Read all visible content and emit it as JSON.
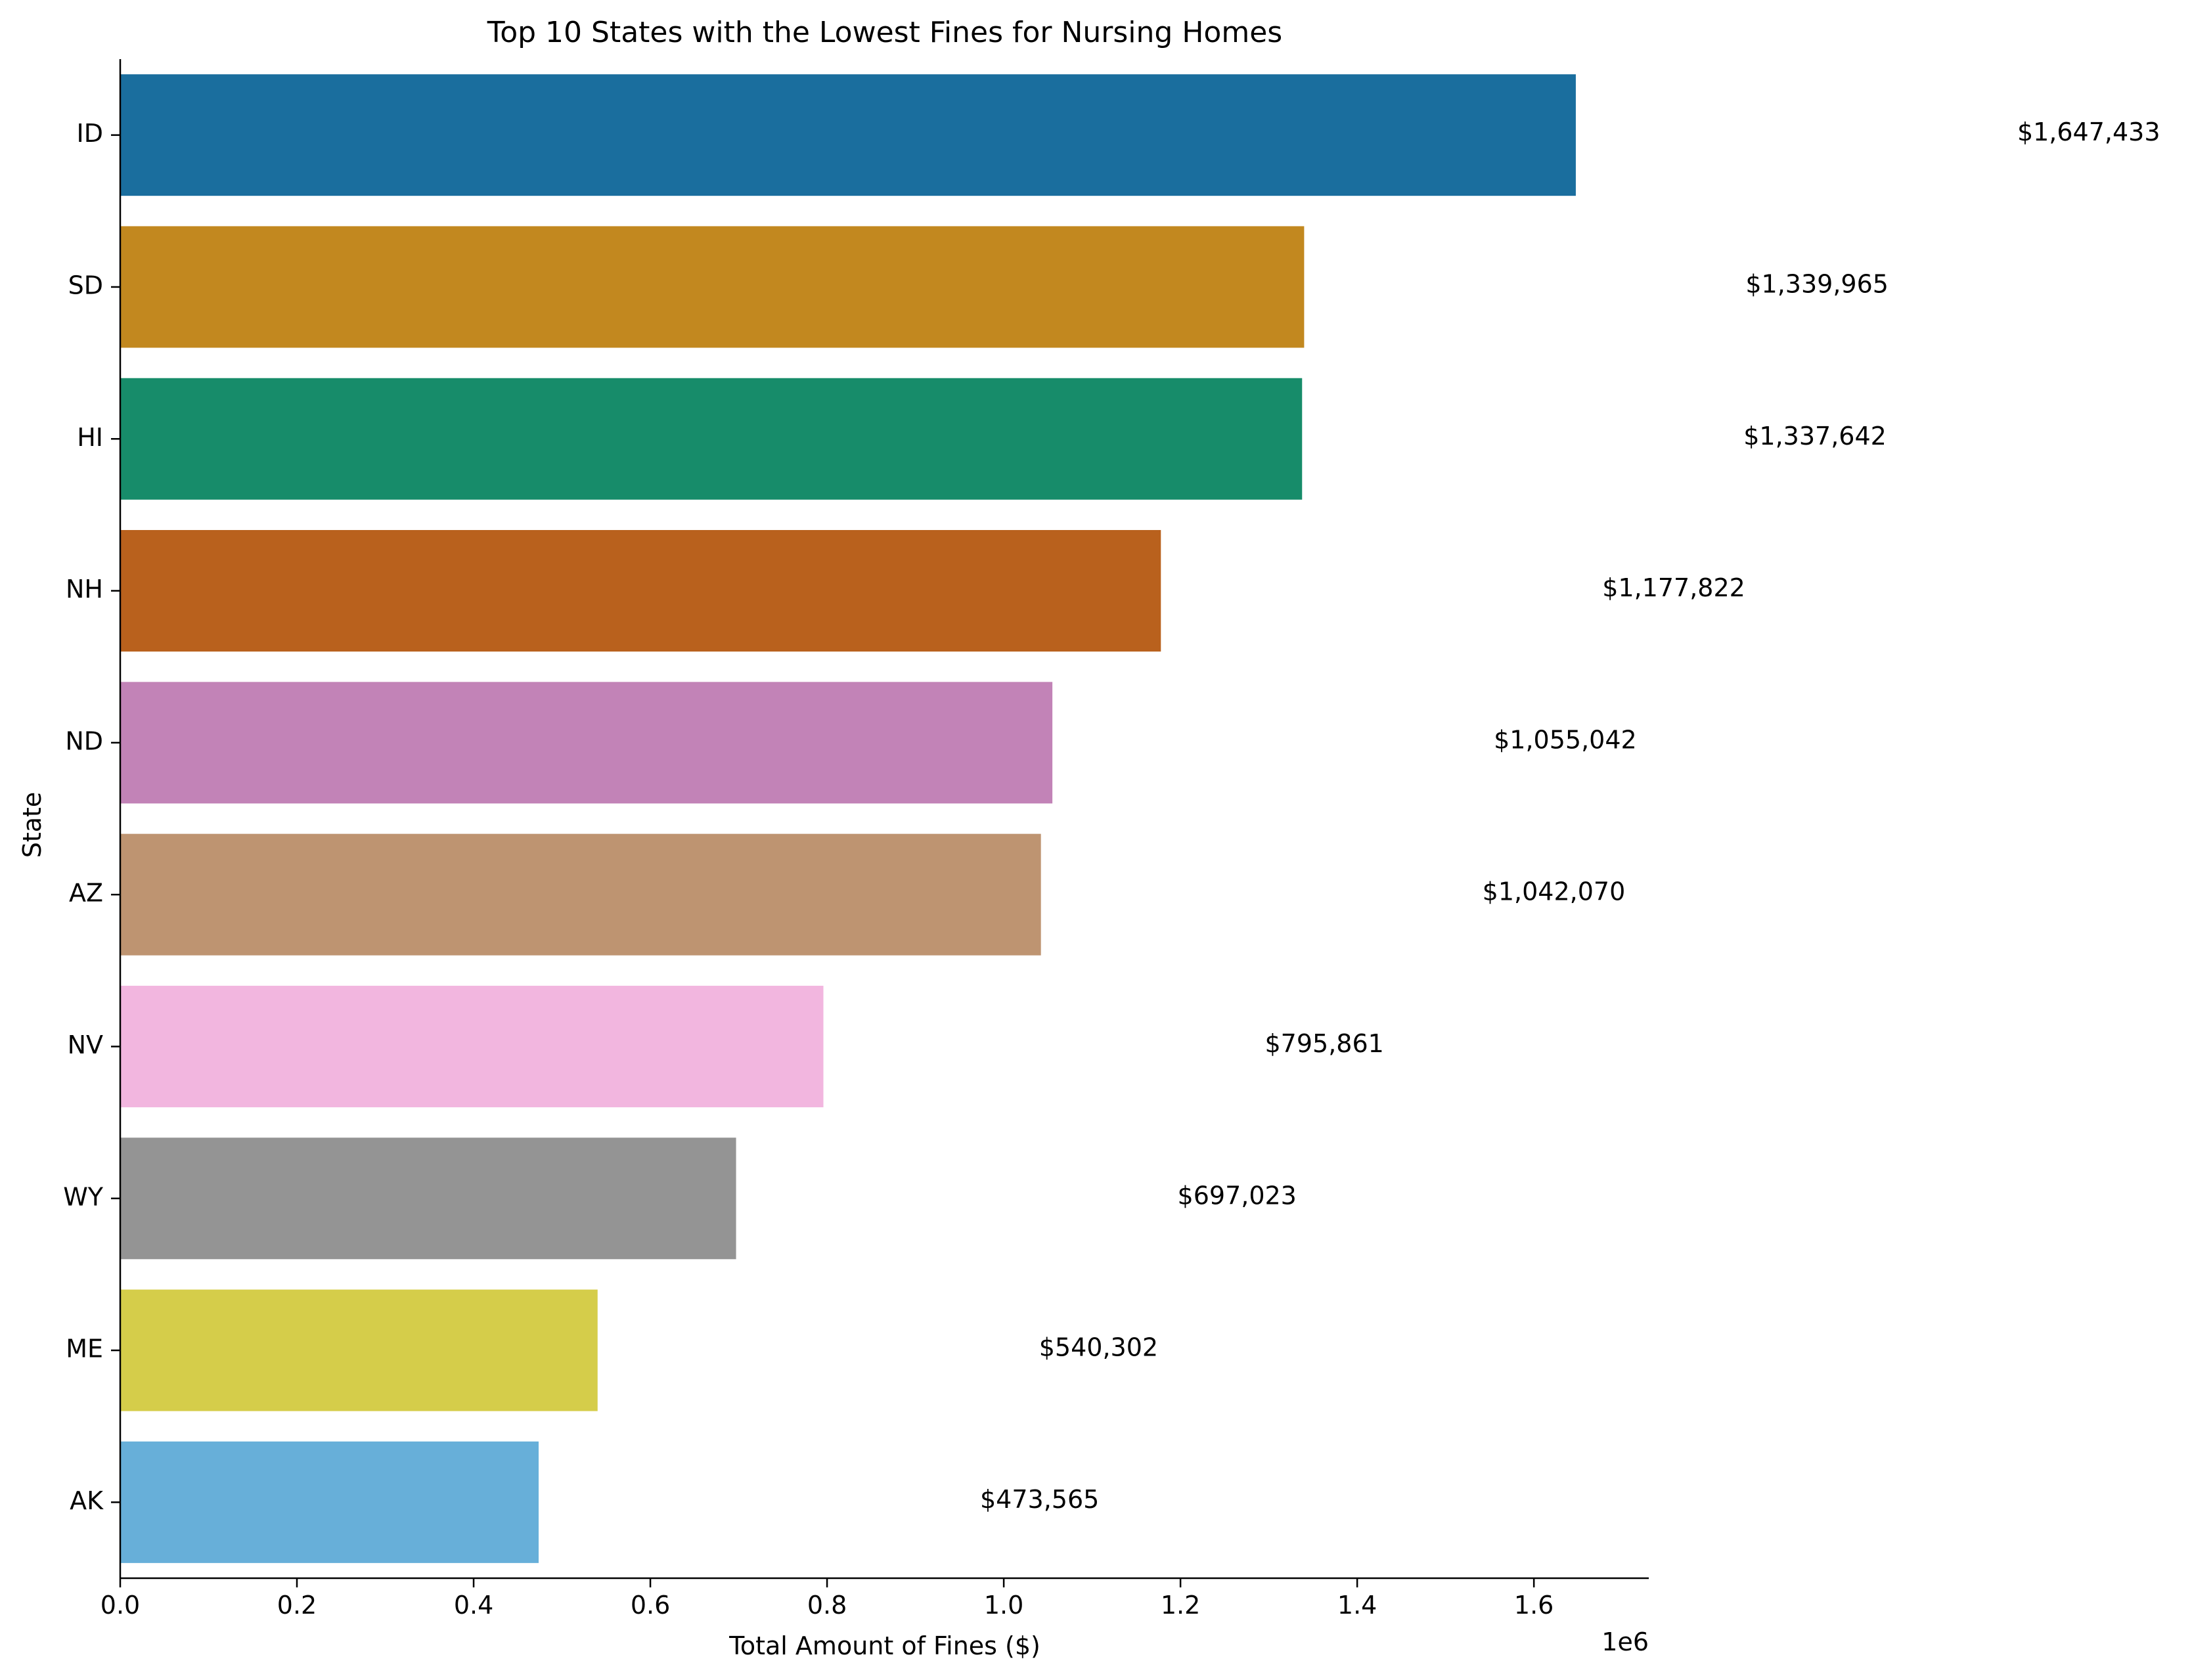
{
  "chart_data": {
    "type": "bar",
    "orientation": "horizontal",
    "title": "Top 10 States with the Lowest Fines for Nursing Homes",
    "xlabel": "Total Amount of Fines ($)",
    "ylabel": "State",
    "x_offset_label": "1e6",
    "xlim": [
      0,
      1730000
    ],
    "x_ticks": [
      0.0,
      200000,
      400000,
      600000,
      800000,
      1000000,
      1200000,
      1400000,
      1600000
    ],
    "x_tick_labels": [
      "0.0",
      "0.2",
      "0.4",
      "0.6",
      "0.8",
      "1.0",
      "1.2",
      "1.4",
      "1.6"
    ],
    "grid": false,
    "categories": [
      "ID",
      "SD",
      "HI",
      "NH",
      "ND",
      "AZ",
      "NV",
      "WY",
      "ME",
      "AK"
    ],
    "values": [
      1647433,
      1339965,
      1337642,
      1177822,
      1055042,
      1042070,
      795861,
      697023,
      540302,
      473565
    ],
    "value_labels": [
      "$1,647,433",
      "$1,339,965",
      "$1,337,642",
      "$1,177,822",
      "$1,055,042",
      "$1,042,070",
      "$795,861",
      "$697,023",
      "$540,302",
      "$473,565"
    ],
    "colors": [
      "#1a6e9e",
      "#c2881f",
      "#178c6a",
      "#b9611d",
      "#c283b7",
      "#be9471",
      "#f2b6df",
      "#949494",
      "#d5cd4a",
      "#67afd9"
    ]
  }
}
